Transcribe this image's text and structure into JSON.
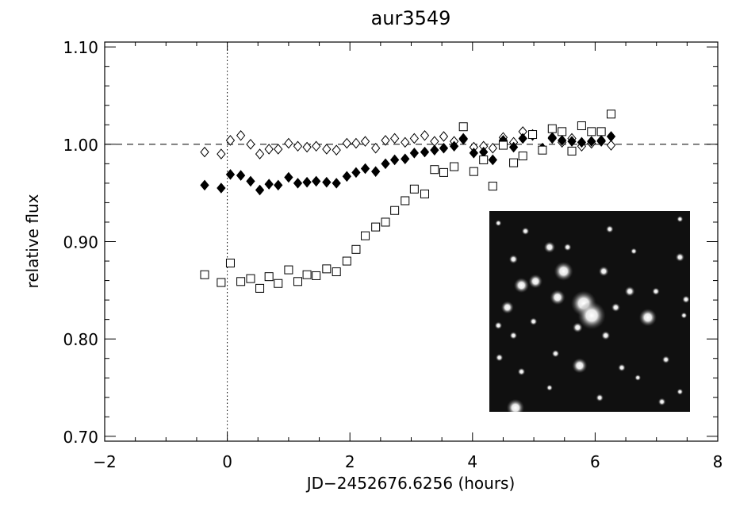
{
  "chart_data": {
    "type": "scatter",
    "title": "aur3549",
    "xlabel": "JD−2452676.6256 (hours)",
    "ylabel": "relative flux",
    "xlim": [
      -2,
      8
    ],
    "ylim": [
      0.695,
      1.105
    ],
    "x_ticks": [
      -2,
      0,
      2,
      4,
      6,
      8
    ],
    "x_tick_labels": [
      "−2",
      "0",
      "2",
      "4",
      "6",
      "8"
    ],
    "y_ticks": [
      0.7,
      0.8,
      0.9,
      1.0,
      1.1
    ],
    "y_tick_labels": [
      "0.70",
      "0.80",
      "0.90",
      "1.00",
      "1.10"
    ],
    "grid": false,
    "reference_lines": [
      {
        "axis": "y",
        "value": 1.0,
        "style": "dashed"
      },
      {
        "axis": "x",
        "value": 0,
        "style": "dotted"
      }
    ],
    "series": [
      {
        "marker": "open-diamond",
        "x": [
          -0.37,
          -0.1,
          0.05,
          0.22,
          0.38,
          0.53,
          0.68,
          0.83,
          1.0,
          1.15,
          1.3,
          1.45,
          1.62,
          1.78,
          1.95,
          2.1,
          2.25,
          2.42,
          2.58,
          2.73,
          2.9,
          3.05,
          3.22,
          3.38,
          3.53,
          3.7,
          3.85,
          4.02,
          4.18,
          4.33,
          4.5,
          4.67,
          4.82,
          4.98,
          5.14,
          5.3,
          5.46,
          5.62,
          5.78,
          5.94,
          6.1,
          6.26
        ],
        "y": [
          0.992,
          0.99,
          1.004,
          1.009,
          1.0,
          0.99,
          0.995,
          0.995,
          1.001,
          0.998,
          0.997,
          0.998,
          0.995,
          0.994,
          1.001,
          1.001,
          1.003,
          0.996,
          1.004,
          1.006,
          1.002,
          1.006,
          1.009,
          1.003,
          1.008,
          1.003,
          1.005,
          0.997,
          0.998,
          0.996,
          1.007,
          1.002,
          1.013,
          1.01,
          0.996,
          1.006,
          1.002,
          1.006,
          0.998,
          1.001,
          1.003,
          0.999
        ]
      },
      {
        "marker": "filled-diamond",
        "x": [
          -0.37,
          -0.1,
          0.05,
          0.22,
          0.38,
          0.53,
          0.68,
          0.83,
          1.0,
          1.15,
          1.3,
          1.45,
          1.62,
          1.78,
          1.95,
          2.1,
          2.25,
          2.42,
          2.58,
          2.73,
          2.9,
          3.05,
          3.22,
          3.38,
          3.53,
          3.7,
          3.85,
          4.02,
          4.18,
          4.33,
          4.5,
          4.67,
          4.82,
          4.98,
          5.14,
          5.3,
          5.46,
          5.62,
          5.78,
          5.94,
          6.1,
          6.26
        ],
        "y": [
          0.958,
          0.955,
          0.969,
          0.968,
          0.962,
          0.953,
          0.959,
          0.958,
          0.966,
          0.96,
          0.961,
          0.962,
          0.961,
          0.96,
          0.967,
          0.971,
          0.975,
          0.972,
          0.98,
          0.984,
          0.985,
          0.991,
          0.992,
          0.994,
          0.996,
          0.998,
          1.006,
          0.991,
          0.992,
          0.984,
          1.004,
          0.997,
          1.006,
          1.009,
          0.996,
          1.007,
          1.004,
          1.003,
          1.002,
          1.003,
          1.004,
          1.008
        ]
      },
      {
        "marker": "open-square",
        "x": [
          -0.37,
          -0.1,
          0.05,
          0.22,
          0.38,
          0.53,
          0.68,
          0.83,
          1.0,
          1.15,
          1.3,
          1.45,
          1.62,
          1.78,
          1.95,
          2.1,
          2.25,
          2.42,
          2.58,
          2.73,
          2.9,
          3.05,
          3.22,
          3.38,
          3.53,
          3.7,
          3.85,
          4.02,
          4.18,
          4.33,
          4.5,
          4.67,
          4.82,
          4.98,
          5.14,
          5.3,
          5.46,
          5.62,
          5.78,
          5.94,
          6.1,
          6.26
        ],
        "y": [
          0.866,
          0.858,
          0.878,
          0.859,
          0.862,
          0.852,
          0.864,
          0.857,
          0.871,
          0.859,
          0.866,
          0.865,
          0.872,
          0.869,
          0.88,
          0.892,
          0.906,
          0.915,
          0.92,
          0.932,
          0.942,
          0.954,
          0.949,
          0.974,
          0.971,
          0.977,
          1.018,
          0.972,
          0.984,
          0.957,
          0.999,
          0.981,
          0.988,
          1.01,
          0.994,
          1.016,
          1.013,
          0.993,
          1.019,
          1.013,
          1.013,
          1.031
        ]
      }
    ],
    "inset": {
      "type": "image",
      "description_visible": "star field"
    }
  },
  "inset_stars": [
    [
      0.045,
      0.06,
      2.5
    ],
    [
      0.18,
      0.1,
      3
    ],
    [
      0.39,
      0.18,
      3
    ],
    [
      0.6,
      0.09,
      3
    ],
    [
      0.95,
      0.04,
      2.5
    ],
    [
      0.72,
      0.2,
      2.5
    ],
    [
      0.12,
      0.24,
      3.5
    ],
    [
      0.3,
      0.18,
      4.5
    ],
    [
      0.57,
      0.3,
      4
    ],
    [
      0.95,
      0.23,
      3.5
    ],
    [
      0.7,
      0.4,
      4
    ],
    [
      0.83,
      0.4,
      3
    ],
    [
      0.23,
      0.35,
      5.5
    ],
    [
      0.37,
      0.3,
      7.5
    ],
    [
      0.16,
      0.37,
      6
    ],
    [
      0.34,
      0.43,
      6
    ],
    [
      0.09,
      0.48,
      5
    ],
    [
      0.045,
      0.57,
      3
    ],
    [
      0.47,
      0.46,
      10
    ],
    [
      0.51,
      0.52,
      11
    ],
    [
      0.44,
      0.58,
      4
    ],
    [
      0.58,
      0.62,
      3.5
    ],
    [
      0.79,
      0.53,
      7
    ],
    [
      0.63,
      0.48,
      3.5
    ],
    [
      0.98,
      0.44,
      3
    ],
    [
      0.97,
      0.52,
      2.5
    ],
    [
      0.12,
      0.62,
      3
    ],
    [
      0.22,
      0.55,
      3
    ],
    [
      0.88,
      0.74,
      3
    ],
    [
      0.66,
      0.78,
      3
    ],
    [
      0.05,
      0.73,
      3
    ],
    [
      0.16,
      0.8,
      3
    ],
    [
      0.33,
      0.71,
      3
    ],
    [
      0.45,
      0.77,
      6
    ],
    [
      0.74,
      0.83,
      2.5
    ],
    [
      0.95,
      0.9,
      2.5
    ],
    [
      0.55,
      0.93,
      3
    ],
    [
      0.13,
      0.98,
      7
    ],
    [
      0.3,
      0.88,
      2.5
    ],
    [
      0.86,
      0.95,
      3
    ]
  ]
}
